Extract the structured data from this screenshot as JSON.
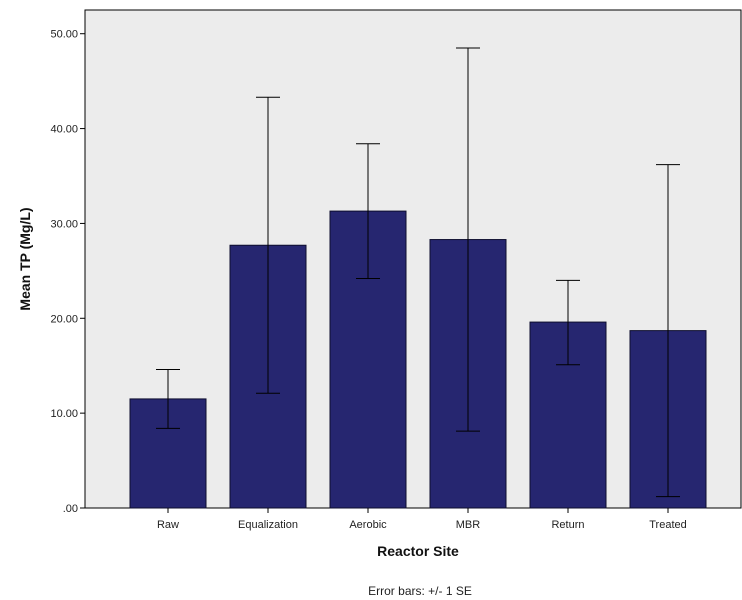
{
  "chart_data": {
    "type": "bar",
    "categories": [
      "Raw",
      "Equalization",
      "Aerobic",
      "MBR",
      "Return",
      "Treated"
    ],
    "values": [
      11.5,
      27.7,
      31.3,
      28.3,
      19.6,
      18.7
    ],
    "error_lower": [
      8.4,
      12.1,
      24.2,
      8.1,
      15.1,
      1.2
    ],
    "error_upper": [
      14.6,
      43.3,
      38.4,
      48.5,
      24.0,
      36.2
    ],
    "title": "",
    "xlabel": "Reactor Site",
    "ylabel": "Mean TP (Mg/L)",
    "ylim": [
      0,
      52.5
    ],
    "yticks": [
      0,
      10,
      20,
      30,
      40,
      50
    ],
    "ytick_labels": [
      ".00",
      "10.00",
      "20.00",
      "30.00",
      "40.00",
      "50.00"
    ],
    "caption": "Error bars: +/- 1 SE",
    "grid": false,
    "legend": "none",
    "colors": {
      "bar": "#262670",
      "bar_edge": "#0d0d2e",
      "plot_background": "#ececec",
      "error_bar": "#000000"
    }
  }
}
